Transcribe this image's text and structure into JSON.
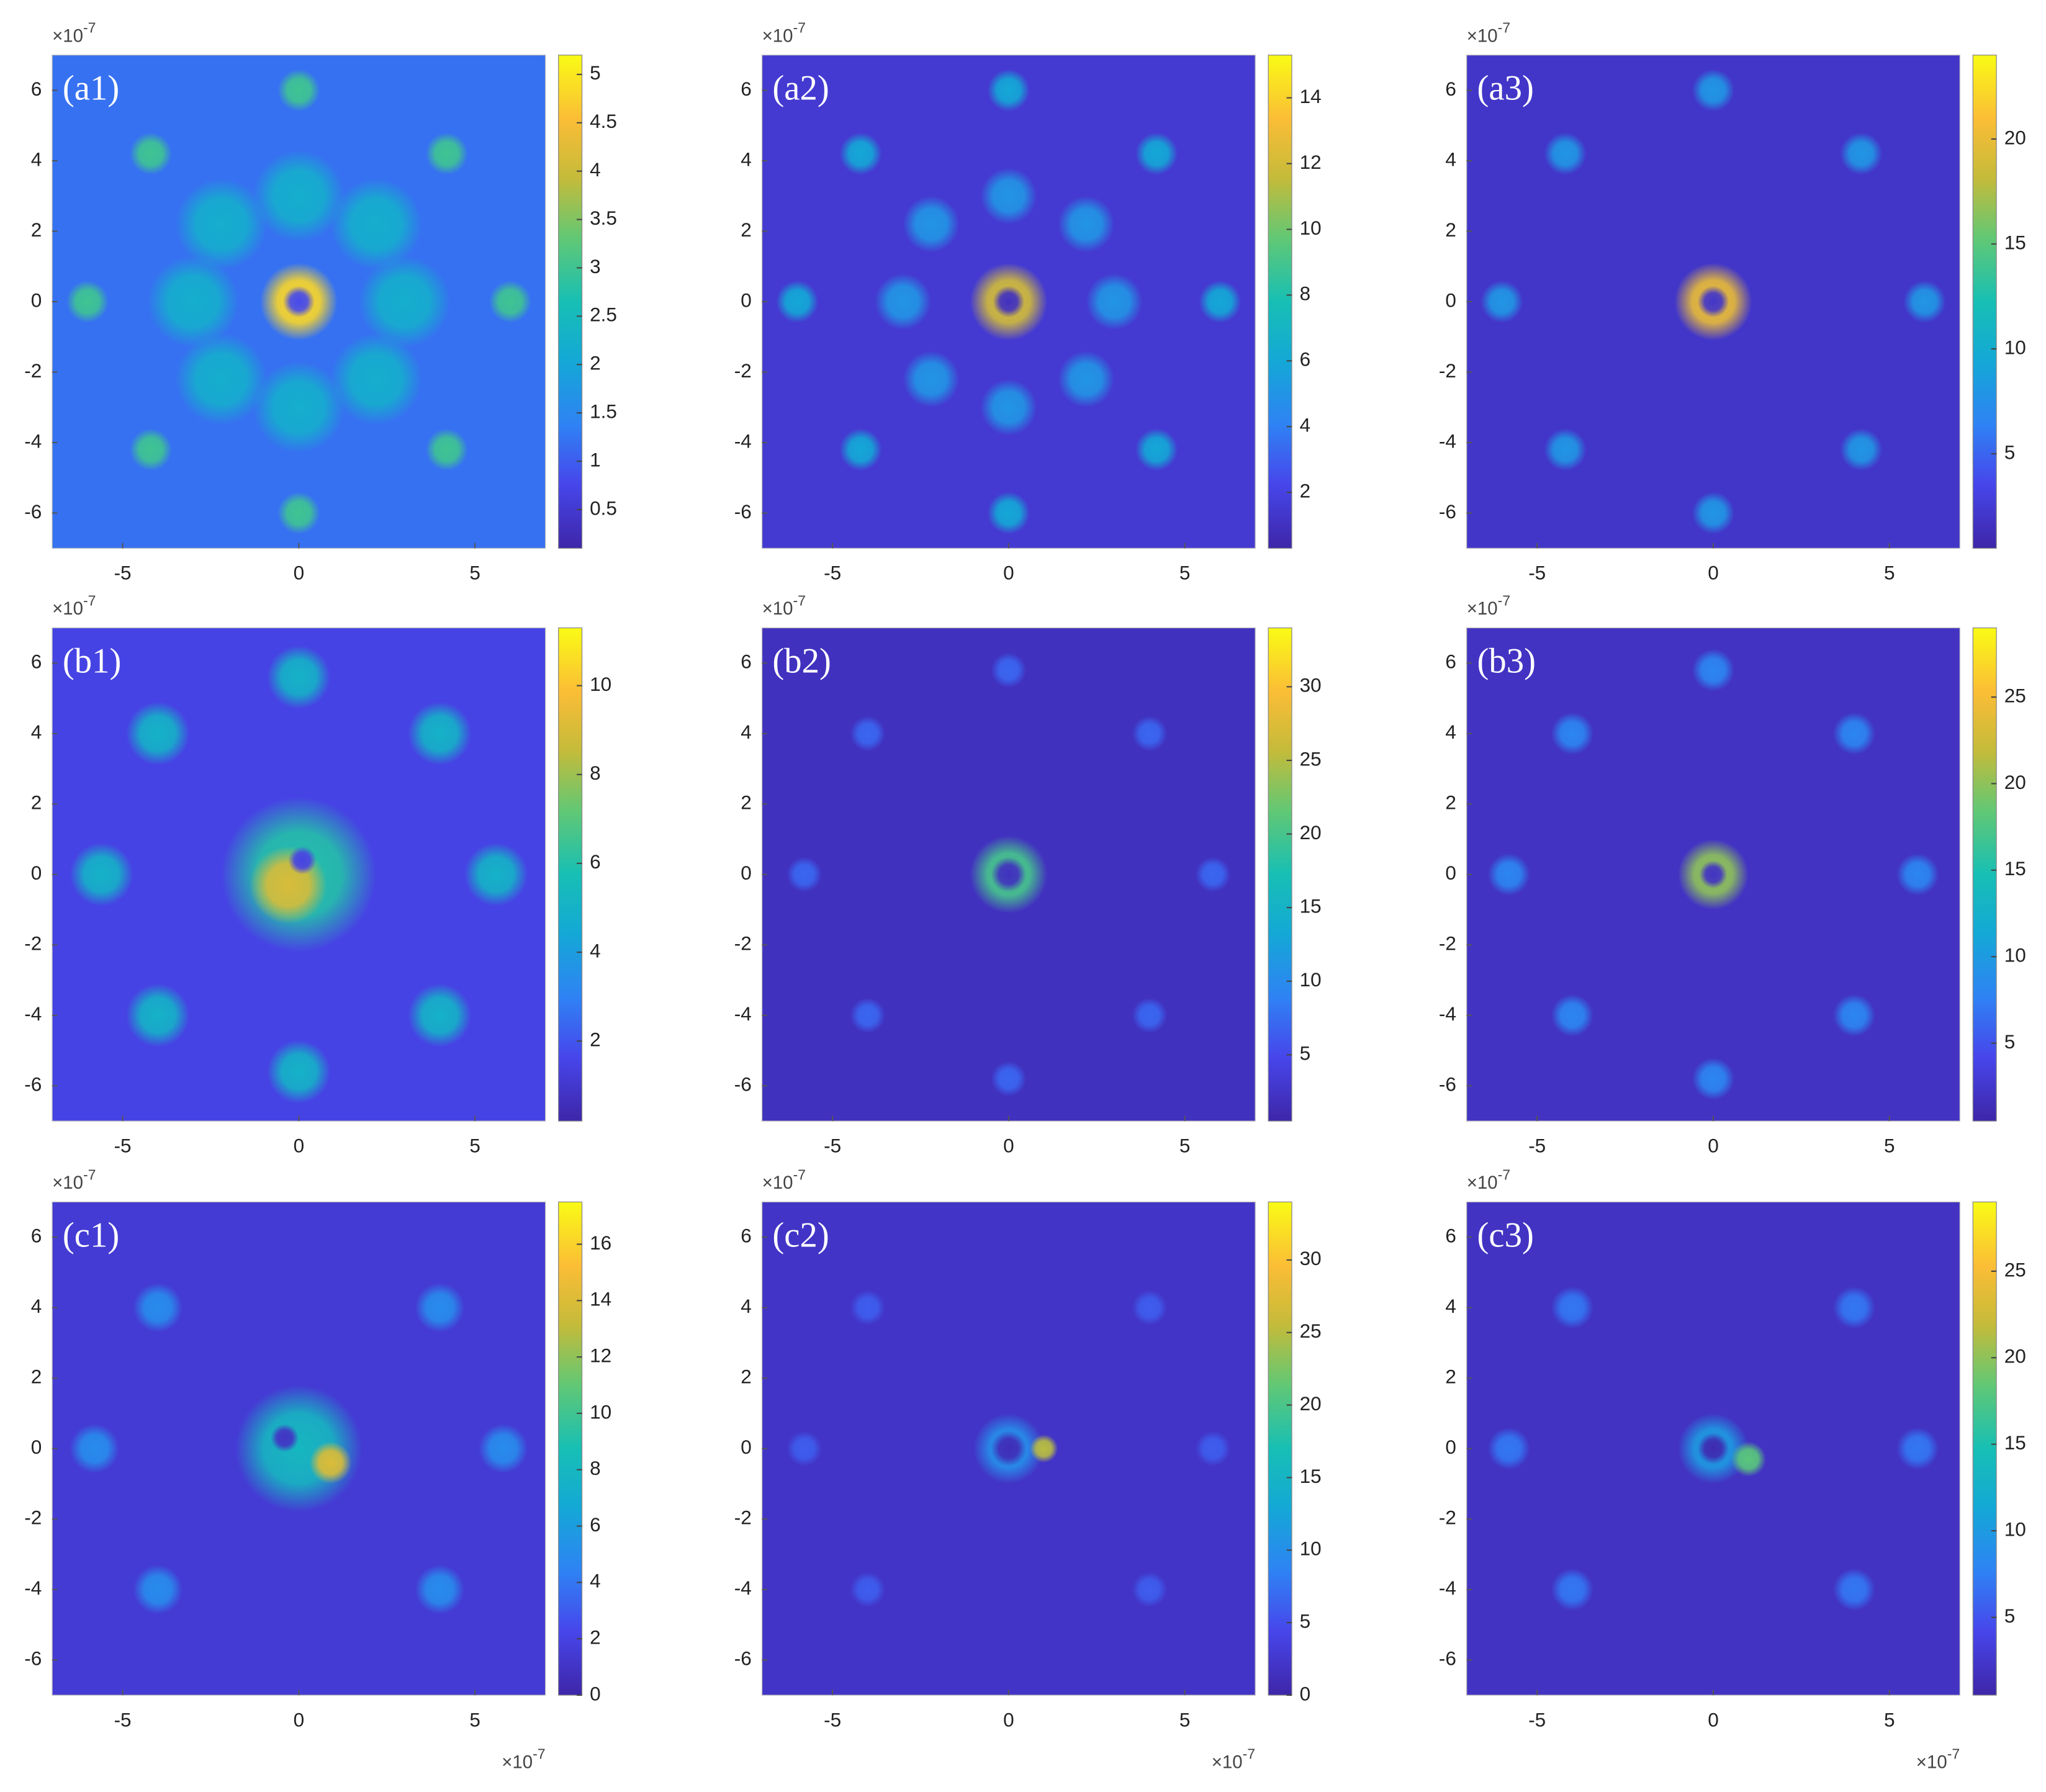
{
  "chart_data": [
    {
      "type": "heatmap",
      "label": "(a1)",
      "xlim": [
        -7,
        7
      ],
      "ylim": [
        -7,
        7
      ],
      "xticks": [
        -5,
        0,
        5
      ],
      "yticks": [
        -6,
        -4,
        -2,
        0,
        2,
        4,
        6
      ],
      "y_multiplier": {
        "base": "×10",
        "exponent": "-7"
      },
      "colormap": "parula",
      "clim": [
        0.1,
        5.2
      ],
      "cticks": [
        0.5,
        1,
        1.5,
        2,
        2.5,
        3,
        3.5,
        4,
        4.5,
        5
      ],
      "background": 1.2,
      "spots": [
        {
          "x": 0,
          "y": 3,
          "value": 2.2,
          "r": 1.3
        },
        {
          "x": 2.2,
          "y": 2.2,
          "value": 2.2,
          "r": 1.3
        },
        {
          "x": 3,
          "y": 0,
          "value": 2.2,
          "r": 1.3
        },
        {
          "x": 2.2,
          "y": -2.2,
          "value": 2.2,
          "r": 1.3
        },
        {
          "x": 0,
          "y": -3,
          "value": 2.2,
          "r": 1.3
        },
        {
          "x": -2.2,
          "y": -2.2,
          "value": 2.2,
          "r": 1.3
        },
        {
          "x": -3,
          "y": 0,
          "value": 2.2,
          "r": 1.3
        },
        {
          "x": -2.2,
          "y": 2.2,
          "value": 2.2,
          "r": 1.3
        },
        {
          "x": 0,
          "y": 6,
          "value": 3,
          "r": 0.6
        },
        {
          "x": 4.2,
          "y": 4.2,
          "value": 3,
          "r": 0.6
        },
        {
          "x": 6,
          "y": 0,
          "value": 3,
          "r": 0.6
        },
        {
          "x": 4.2,
          "y": -4.2,
          "value": 3,
          "r": 0.6
        },
        {
          "x": 0,
          "y": -6,
          "value": 3,
          "r": 0.6
        },
        {
          "x": -4.2,
          "y": -4.2,
          "value": 3,
          "r": 0.6
        },
        {
          "x": -6,
          "y": 0,
          "value": 3,
          "r": 0.6
        },
        {
          "x": -4.2,
          "y": 4.2,
          "value": 3,
          "r": 0.6
        },
        {
          "x": 0,
          "y": 0,
          "value": 4.8,
          "r": 1.1
        },
        {
          "x": 0,
          "y": 0,
          "value": 0.8,
          "r": 0.45
        }
      ]
    },
    {
      "type": "heatmap",
      "label": "(a2)",
      "xlim": [
        -7,
        7
      ],
      "ylim": [
        -7,
        7
      ],
      "xticks": [
        -5,
        0,
        5
      ],
      "yticks": [
        -6,
        -4,
        -2,
        0,
        2,
        4,
        6
      ],
      "y_multiplier": {
        "base": "×10",
        "exponent": "-7"
      },
      "colormap": "parula",
      "clim": [
        0.3,
        15.3
      ],
      "cticks": [
        2,
        4,
        6,
        8,
        10,
        12,
        14
      ],
      "background": 1.5,
      "spots": [
        {
          "x": 0,
          "y": 3,
          "value": 5,
          "r": 0.8
        },
        {
          "x": 2.2,
          "y": 2.2,
          "value": 5,
          "r": 0.8
        },
        {
          "x": 3,
          "y": 0,
          "value": 5,
          "r": 0.8
        },
        {
          "x": 2.2,
          "y": -2.2,
          "value": 5,
          "r": 0.8
        },
        {
          "x": 0,
          "y": -3,
          "value": 5,
          "r": 0.8
        },
        {
          "x": -2.2,
          "y": -2.2,
          "value": 5,
          "r": 0.8
        },
        {
          "x": -3,
          "y": 0,
          "value": 5,
          "r": 0.8
        },
        {
          "x": -2.2,
          "y": 2.2,
          "value": 5,
          "r": 0.8
        },
        {
          "x": 0,
          "y": 6,
          "value": 6,
          "r": 0.6
        },
        {
          "x": 4.2,
          "y": 4.2,
          "value": 6,
          "r": 0.6
        },
        {
          "x": 6,
          "y": 0,
          "value": 6,
          "r": 0.6
        },
        {
          "x": 4.2,
          "y": -4.2,
          "value": 6,
          "r": 0.6
        },
        {
          "x": 0,
          "y": -6,
          "value": 6,
          "r": 0.6
        },
        {
          "x": -4.2,
          "y": -4.2,
          "value": 6,
          "r": 0.6
        },
        {
          "x": -6,
          "y": 0,
          "value": 6,
          "r": 0.6
        },
        {
          "x": -4.2,
          "y": 4.2,
          "value": 6,
          "r": 0.6
        },
        {
          "x": 0,
          "y": 0,
          "value": 12,
          "r": 1.1
        },
        {
          "x": 0,
          "y": 0,
          "value": 1,
          "r": 0.45
        }
      ]
    },
    {
      "type": "heatmap",
      "label": "(a3)",
      "xlim": [
        -7,
        7
      ],
      "ylim": [
        -7,
        7
      ],
      "xticks": [
        -5,
        0,
        5
      ],
      "yticks": [
        -6,
        -4,
        -2,
        0,
        2,
        4,
        6
      ],
      "y_multiplier": {
        "base": "×10",
        "exponent": "-7"
      },
      "colormap": "parula",
      "clim": [
        0.5,
        24
      ],
      "cticks": [
        5,
        10,
        15,
        20
      ],
      "background": 2,
      "spots": [
        {
          "x": 0,
          "y": 6,
          "value": 8,
          "r": 0.6
        },
        {
          "x": 4.2,
          "y": 4.2,
          "value": 8,
          "r": 0.6
        },
        {
          "x": 6,
          "y": 0,
          "value": 8,
          "r": 0.6
        },
        {
          "x": 4.2,
          "y": -4.2,
          "value": 8,
          "r": 0.6
        },
        {
          "x": 0,
          "y": -6,
          "value": 8,
          "r": 0.6
        },
        {
          "x": -4.2,
          "y": -4.2,
          "value": 8,
          "r": 0.6
        },
        {
          "x": -6,
          "y": 0,
          "value": 8,
          "r": 0.6
        },
        {
          "x": -4.2,
          "y": 4.2,
          "value": 8,
          "r": 0.6
        },
        {
          "x": 0,
          "y": 0,
          "value": 20,
          "r": 1.1
        },
        {
          "x": 0,
          "y": 0,
          "value": 2,
          "r": 0.45
        }
      ]
    },
    {
      "type": "heatmap",
      "label": "(b1)",
      "xlim": [
        -7,
        7
      ],
      "ylim": [
        -7,
        7
      ],
      "xticks": [
        -5,
        0,
        5
      ],
      "yticks": [
        -6,
        -4,
        -2,
        0,
        2,
        4,
        6
      ],
      "y_multiplier": {
        "base": "×10",
        "exponent": "-7"
      },
      "colormap": "parula",
      "clim": [
        0.2,
        11.3
      ],
      "cticks": [
        2,
        4,
        6,
        8,
        10
      ],
      "background": 1.5,
      "spots": [
        {
          "x": 0,
          "y": 5.6,
          "value": 5,
          "r": 0.9
        },
        {
          "x": 4,
          "y": 4,
          "value": 5,
          "r": 0.9
        },
        {
          "x": 5.6,
          "y": 0,
          "value": 5,
          "r": 0.9
        },
        {
          "x": 4,
          "y": -4,
          "value": 5,
          "r": 0.9
        },
        {
          "x": 0,
          "y": -5.6,
          "value": 5,
          "r": 0.9
        },
        {
          "x": -4,
          "y": -4,
          "value": 5,
          "r": 0.9
        },
        {
          "x": -5.6,
          "y": 0,
          "value": 5,
          "r": 0.9
        },
        {
          "x": -4,
          "y": 4,
          "value": 5,
          "r": 0.9
        },
        {
          "x": 0,
          "y": 0,
          "value": 6,
          "r": 2.2
        },
        {
          "x": -0.3,
          "y": -0.3,
          "value": 9,
          "r": 1.1
        },
        {
          "x": 0.1,
          "y": 0.4,
          "value": 1.5,
          "r": 0.4
        }
      ]
    },
    {
      "type": "heatmap",
      "label": "(b2)",
      "xlim": [
        -7,
        7
      ],
      "ylim": [
        -7,
        7
      ],
      "xticks": [
        -5,
        0,
        5
      ],
      "yticks": [
        -6,
        -4,
        -2,
        0,
        2,
        4,
        6
      ],
      "y_multiplier": {
        "base": "×10",
        "exponent": "-7"
      },
      "colormap": "parula",
      "clim": [
        0.5,
        34
      ],
      "cticks": [
        5,
        10,
        15,
        20,
        25,
        30
      ],
      "background": 2,
      "spots": [
        {
          "x": 0,
          "y": 5.8,
          "value": 7,
          "r": 0.5
        },
        {
          "x": 4,
          "y": 4,
          "value": 7,
          "r": 0.5
        },
        {
          "x": 5.8,
          "y": 0,
          "value": 7,
          "r": 0.5
        },
        {
          "x": 4,
          "y": -4,
          "value": 7,
          "r": 0.5
        },
        {
          "x": 0,
          "y": -5.8,
          "value": 7,
          "r": 0.5
        },
        {
          "x": -4,
          "y": -4,
          "value": 7,
          "r": 0.5
        },
        {
          "x": -5.8,
          "y": 0,
          "value": 7,
          "r": 0.5
        },
        {
          "x": -4,
          "y": 4,
          "value": 7,
          "r": 0.5
        },
        {
          "x": 0,
          "y": 0,
          "value": 20,
          "r": 1.1
        },
        {
          "x": 0,
          "y": 0,
          "value": 2,
          "r": 0.5
        }
      ]
    },
    {
      "type": "heatmap",
      "label": "(b3)",
      "xlim": [
        -7,
        7
      ],
      "ylim": [
        -7,
        7
      ],
      "xticks": [
        -5,
        0,
        5
      ],
      "yticks": [
        -6,
        -4,
        -2,
        0,
        2,
        4,
        6
      ],
      "y_multiplier": {
        "base": "×10",
        "exponent": "-7"
      },
      "colormap": "parula",
      "clim": [
        0.5,
        29
      ],
      "cticks": [
        5,
        10,
        15,
        20,
        25
      ],
      "background": 2,
      "spots": [
        {
          "x": 0,
          "y": 5.8,
          "value": 8,
          "r": 0.6
        },
        {
          "x": 4,
          "y": 4,
          "value": 8,
          "r": 0.6
        },
        {
          "x": 5.8,
          "y": 0,
          "value": 8,
          "r": 0.6
        },
        {
          "x": 4,
          "y": -4,
          "value": 8,
          "r": 0.6
        },
        {
          "x": 0,
          "y": -5.8,
          "value": 8,
          "r": 0.6
        },
        {
          "x": -4,
          "y": -4,
          "value": 8,
          "r": 0.6
        },
        {
          "x": -5.8,
          "y": 0,
          "value": 8,
          "r": 0.6
        },
        {
          "x": -4,
          "y": 4,
          "value": 8,
          "r": 0.6
        },
        {
          "x": 0,
          "y": 0,
          "value": 20,
          "r": 1
        },
        {
          "x": 0,
          "y": 0,
          "value": 2,
          "r": 0.4
        }
      ]
    },
    {
      "type": "heatmap",
      "label": "(c1)",
      "xlim": [
        -7,
        7
      ],
      "ylim": [
        -7,
        7
      ],
      "xticks": [
        -5,
        0,
        5
      ],
      "yticks": [
        -6,
        -4,
        -2,
        0,
        2,
        4,
        6
      ],
      "y_multiplier": {
        "base": "×10",
        "exponent": "-7"
      },
      "x_multiplier": {
        "base": "×10",
        "exponent": "-7"
      },
      "colormap": "parula",
      "clim": [
        0,
        17.5
      ],
      "cticks": [
        0,
        2,
        4,
        6,
        8,
        10,
        12,
        14,
        16
      ],
      "background": 1.5,
      "spots": [
        {
          "x": 4,
          "y": 4,
          "value": 5,
          "r": 0.7
        },
        {
          "x": 5.8,
          "y": 0,
          "value": 5,
          "r": 0.7
        },
        {
          "x": 4,
          "y": -4,
          "value": 5,
          "r": 0.7
        },
        {
          "x": -4,
          "y": -4,
          "value": 5,
          "r": 0.7
        },
        {
          "x": -5.8,
          "y": 0,
          "value": 5,
          "r": 0.7
        },
        {
          "x": -4,
          "y": 4,
          "value": 5,
          "r": 0.7
        },
        {
          "x": 0,
          "y": 0,
          "value": 8,
          "r": 1.8
        },
        {
          "x": 0.9,
          "y": -0.4,
          "value": 14,
          "r": 0.6
        },
        {
          "x": -0.4,
          "y": 0.3,
          "value": 1,
          "r": 0.4
        }
      ]
    },
    {
      "type": "heatmap",
      "label": "(c2)",
      "xlim": [
        -7,
        7
      ],
      "ylim": [
        -7,
        7
      ],
      "xticks": [
        -5,
        0,
        5
      ],
      "yticks": [
        -6,
        -4,
        -2,
        0,
        2,
        4,
        6
      ],
      "y_multiplier": {
        "base": "×10",
        "exponent": "-7"
      },
      "x_multiplier": {
        "base": "×10",
        "exponent": "-7"
      },
      "colormap": "parula",
      "clim": [
        0,
        34
      ],
      "cticks": [
        0,
        5,
        10,
        15,
        20,
        25,
        30
      ],
      "background": 2,
      "spots": [
        {
          "x": 4,
          "y": 4,
          "value": 6,
          "r": 0.5
        },
        {
          "x": 5.8,
          "y": 0,
          "value": 6,
          "r": 0.5
        },
        {
          "x": 4,
          "y": -4,
          "value": 6,
          "r": 0.5
        },
        {
          "x": -4,
          "y": -4,
          "value": 6,
          "r": 0.5
        },
        {
          "x": -5.8,
          "y": 0,
          "value": 6,
          "r": 0.5
        },
        {
          "x": -4,
          "y": 4,
          "value": 6,
          "r": 0.5
        },
        {
          "x": 0,
          "y": 0,
          "value": 10,
          "r": 1
        },
        {
          "x": 1,
          "y": 0,
          "value": 25,
          "r": 0.4
        },
        {
          "x": 0,
          "y": 0,
          "value": 1,
          "r": 0.5
        }
      ]
    },
    {
      "type": "heatmap",
      "label": "(c3)",
      "xlim": [
        -7,
        7
      ],
      "ylim": [
        -7,
        7
      ],
      "xticks": [
        -5,
        0,
        5
      ],
      "yticks": [
        -6,
        -4,
        -2,
        0,
        2,
        4,
        6
      ],
      "y_multiplier": {
        "base": "×10",
        "exponent": "-7"
      },
      "x_multiplier": {
        "base": "×10",
        "exponent": "-7"
      },
      "colormap": "parula",
      "clim": [
        0.5,
        29
      ],
      "cticks": [
        5,
        10,
        15,
        20,
        25
      ],
      "background": 2,
      "spots": [
        {
          "x": 4,
          "y": 4,
          "value": 7,
          "r": 0.6
        },
        {
          "x": 5.8,
          "y": 0,
          "value": 7,
          "r": 0.6
        },
        {
          "x": 4,
          "y": -4,
          "value": 7,
          "r": 0.6
        },
        {
          "x": -4,
          "y": -4,
          "value": 7,
          "r": 0.6
        },
        {
          "x": -5.8,
          "y": 0,
          "value": 7,
          "r": 0.6
        },
        {
          "x": -4,
          "y": 4,
          "value": 7,
          "r": 0.6
        },
        {
          "x": 0,
          "y": 0,
          "value": 10,
          "r": 1
        },
        {
          "x": 1,
          "y": -0.3,
          "value": 18,
          "r": 0.5
        },
        {
          "x": 0,
          "y": 0,
          "value": 1,
          "r": 0.45
        }
      ]
    }
  ]
}
